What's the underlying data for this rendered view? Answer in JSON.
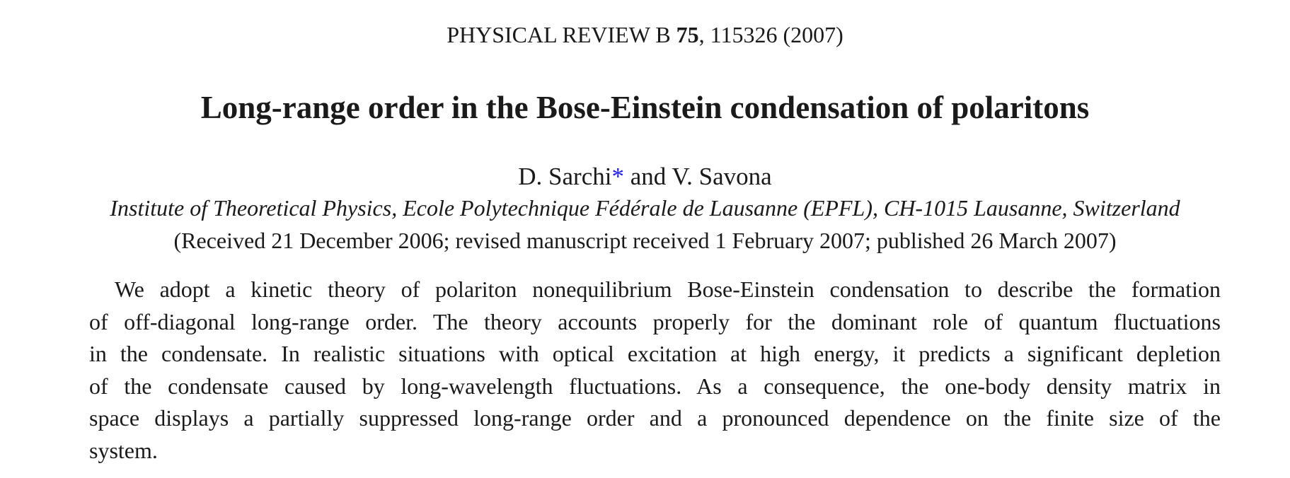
{
  "header": {
    "journal": "PHYSICAL REVIEW B",
    "volume": "75",
    "citation": ", 115326 (2007)"
  },
  "title": "Long-range order in the Bose-Einstein condensation of polaritons",
  "authors": [
    "D. Sarchi",
    "V. Savona"
  ],
  "footnote_mark": "*",
  "conjunction": "and",
  "affiliation": "Institute of Theoretical Physics, Ecole Polytechnique Fédérale de Lausanne (EPFL), CH-1015 Lausanne, Switzerland",
  "received": "(Received 21 December 2006; revised manuscript received 1 February 2007; published 26 March 2007)",
  "abstract": {
    "lines": [
      "We adopt a kinetic theory of polariton nonequilibrium Bose-Einstein condensation to describe the formation",
      "of off-diagonal long-range order. The theory accounts properly for the dominant role of quantum fluctuations",
      "in the condensate. In realistic situations with optical excitation at high energy, it predicts a significant depletion",
      "of the condensate caused by long-wavelength fluctuations. As a consequence, the one-body density matrix in",
      "space displays a partially suppressed long-range order and a pronounced dependence on the finite size of the",
      "system."
    ]
  }
}
